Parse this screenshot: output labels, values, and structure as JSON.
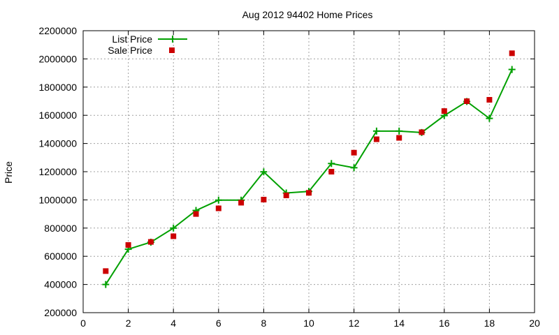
{
  "chart_data": {
    "type": "scatter",
    "title": "Aug 2012 94402 Home Prices",
    "xlabel": "",
    "ylabel": "Price",
    "xlim": [
      0,
      20
    ],
    "ylim": [
      200000,
      2200000
    ],
    "xticks": [
      "0",
      "2",
      "4",
      "6",
      "8",
      "10",
      "12",
      "14",
      "16",
      "18",
      "20"
    ],
    "yticks": [
      "200000",
      "400000",
      "600000",
      "800000",
      "1000000",
      "1200000",
      "1400000",
      "1600000",
      "1800000",
      "2000000",
      "2200000"
    ],
    "grid": true,
    "legend_position": "top-left",
    "series": [
      {
        "name": "List Price",
        "style": "linespoints",
        "marker": "plus",
        "color": "#00a000",
        "x": [
          1,
          2,
          3,
          4,
          5,
          6,
          7,
          8,
          9,
          10,
          11,
          12,
          13,
          14,
          15,
          16,
          17,
          18,
          19
        ],
        "y": [
          400000,
          650000,
          700000,
          800000,
          925000,
          998000,
          998000,
          1199000,
          1049000,
          1060000,
          1258000,
          1228000,
          1488000,
          1488000,
          1478000,
          1598000,
          1698000,
          1578000,
          1925000
        ]
      },
      {
        "name": "Sale Price",
        "style": "points",
        "marker": "square",
        "color": "#cc0000",
        "x": [
          1,
          2,
          3,
          4,
          5,
          6,
          7,
          8,
          9,
          10,
          11,
          12,
          13,
          14,
          15,
          16,
          17,
          18,
          19
        ],
        "y": [
          495000,
          680000,
          702000,
          742000,
          900000,
          940000,
          980000,
          1002000,
          1032000,
          1050000,
          1200000,
          1335000,
          1430000,
          1440000,
          1480000,
          1630000,
          1700000,
          1710000,
          2040000
        ]
      }
    ]
  }
}
